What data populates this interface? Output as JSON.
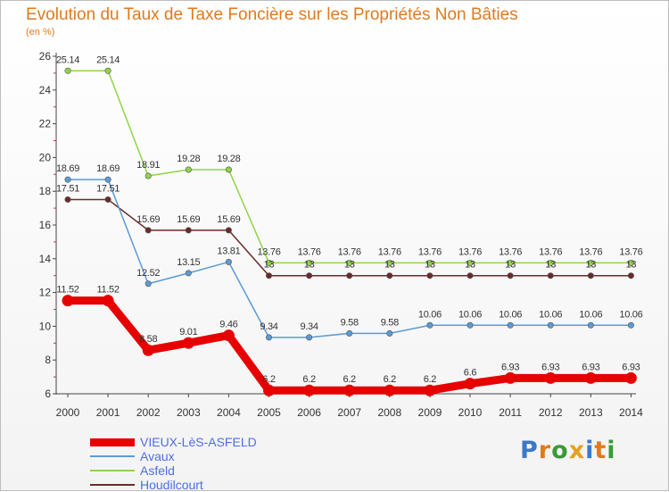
{
  "page": {
    "title": "Evolution du Taux de Taxe Foncière sur les Propriétés Non Bâties",
    "unit": "(en %)"
  },
  "logo": {
    "text": "Proxiti",
    "letter_colors": [
      "#3a78c9",
      "#e07a1f",
      "#3a9a3a",
      "#e8a020",
      "#3a78c9",
      "#e07a1f",
      "#3a9a3a"
    ]
  },
  "chart_data": {
    "type": "line",
    "title": "Evolution du Taux de Taxe Foncière sur les Propriétés Non Bâties",
    "ylabel": "(en %)",
    "xlabel": "",
    "categories": [
      "2000",
      "2001",
      "2002",
      "2003",
      "2004",
      "2005",
      "2006",
      "2007",
      "2008",
      "2009",
      "2010",
      "2011",
      "2012",
      "2013",
      "2014"
    ],
    "ylim": [
      6,
      26
    ],
    "yticks": [
      6,
      8,
      10,
      12,
      14,
      16,
      18,
      20,
      22,
      24,
      26
    ],
    "grid": false,
    "legend_position": "bottom-left",
    "series": [
      {
        "name": "VIEUX-LèS-ASFELD",
        "color": "#e60000",
        "values": [
          11.52,
          11.52,
          8.58,
          9.01,
          9.46,
          6.2,
          6.2,
          6.2,
          6.2,
          6.2,
          6.6,
          6.93,
          6.93,
          6.93,
          6.93
        ],
        "labels": [
          "11.52",
          "11.52",
          "8.58",
          "9.01",
          "9.46",
          "6.2",
          "6.2",
          "6.2",
          "6.2",
          "6.2",
          "6.6",
          "6.93",
          "6.93",
          "6.93",
          "6.93"
        ]
      },
      {
        "name": "Avaux",
        "color": "#5b9bd5",
        "values": [
          18.69,
          18.69,
          12.52,
          13.15,
          13.81,
          9.34,
          9.34,
          9.58,
          9.58,
          10.06,
          10.06,
          10.06,
          10.06,
          10.06,
          10.06
        ],
        "labels": [
          "18.69",
          "18.69",
          "12.52",
          "13.15",
          "13.81",
          "9.34",
          "9.34",
          "9.58",
          "9.58",
          "10.06",
          "10.06",
          "10.06",
          "10.06",
          "10.06",
          "10.06"
        ]
      },
      {
        "name": "Asfeld",
        "color": "#8fd44a",
        "values": [
          25.14,
          25.14,
          18.91,
          19.28,
          19.28,
          13.76,
          13.76,
          13.76,
          13.76,
          13.76,
          13.76,
          13.76,
          13.76,
          13.76,
          13.76
        ],
        "labels": [
          "25.14",
          "25.14",
          "18.91",
          "19.28",
          "19.28",
          "13.76",
          "13.76",
          "13.76",
          "13.76",
          "13.76",
          "13.76",
          "13.76",
          "13.76",
          "13.76",
          "13.76"
        ]
      },
      {
        "name": "Houdilcourt",
        "color": "#6b2a2a",
        "values": [
          17.51,
          17.51,
          15.69,
          15.69,
          15.69,
          13,
          13,
          13,
          13,
          13,
          13,
          13,
          13,
          13,
          13
        ],
        "labels": [
          "17.51",
          "17.51",
          "15.69",
          "15.69",
          "15.69",
          "13",
          "13",
          "13",
          "13",
          "13",
          "13",
          "13",
          "13",
          "13",
          "13"
        ]
      }
    ]
  }
}
